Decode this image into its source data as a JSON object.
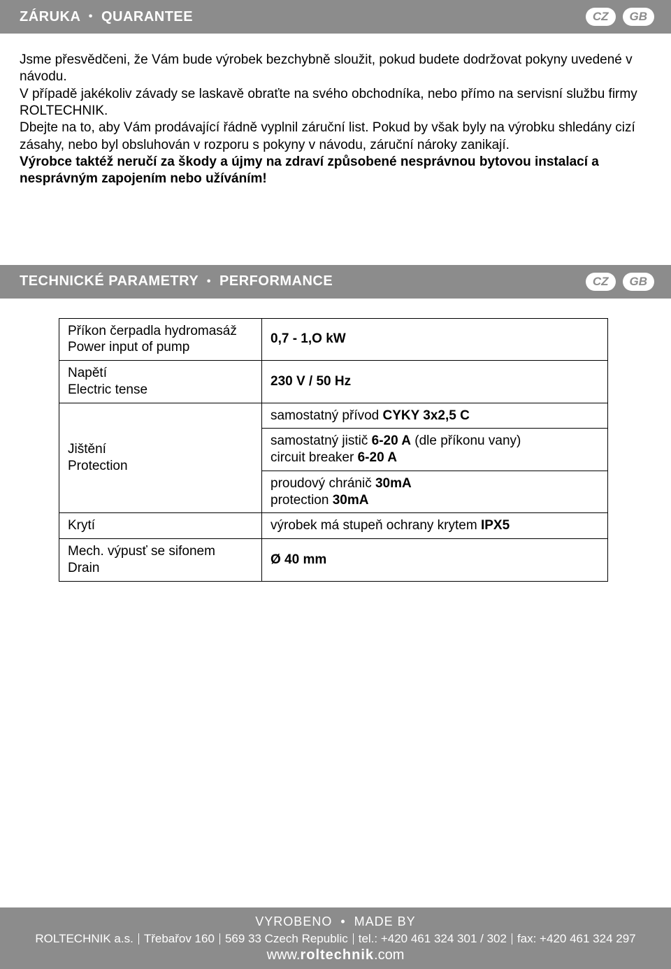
{
  "section1": {
    "title_cz": "ZÁRUKA",
    "title_en": "QUARANTEE",
    "langs": [
      "CZ",
      "GB"
    ],
    "paragraph": "Jsme přesvědčeni, že Vám bude výrobek bezchybně sloužit, pokud budete dodržovat pokyny uvedené v návodu.\nV případě jakékoliv závady se laskavě obraťte na svého obchodníka, nebo přímo na servisní službu firmy ROLTECHNIK.\nDbejte na to, aby Vám prodávající řádně vyplnil záruční list. Pokud by však byly na výrobku shledány cizí zásahy, nebo byl obsluhován v rozporu s pokyny v návodu, záruční nároky zanikají.",
    "paragraph_bold": "Výrobce taktéž neručí za škody a újmy na zdraví způsobené nesprávnou bytovou instalací a nesprávným zapojením nebo užíváním!"
  },
  "section2": {
    "title_cz": "TECHNICKÉ PARAMETRY",
    "title_en": "PERFORMANCE",
    "langs": [
      "CZ",
      "GB"
    ]
  },
  "table": {
    "r1c1a": "Příkon čerpadla hydromasáž",
    "r1c1b": "Power input of pump",
    "r1c2": "0,7 - 1,O kW",
    "r2c1a": "Napětí",
    "r2c1b": "Electric tense",
    "r2c2": "230 V / 50 Hz",
    "r3c1": "Jištění\nProtection",
    "r3c2a_pre": "samostatný přívod ",
    "r3c2a_b": "CYKY 3x2,5 C",
    "r3c2b_pre": "samostatný jistič ",
    "r3c2b_b": "6-20 A",
    "r3c2b_post": " (dle příkonu vany)",
    "r3c2b_en_pre": "circuit breaker ",
    "r3c2b_en_b": "6-20 A",
    "r3c2c_pre": "proudový chránič ",
    "r3c2c_b": "30mA",
    "r3c2c_en_pre": "protection ",
    "r3c2c_en_b": "30mA",
    "r4c1": "Krytí",
    "r4c2_pre": "výrobek má stupeň ochrany krytem ",
    "r4c2_b": "IPX5",
    "r5c1a": "Mech. výpusť se sifonem",
    "r5c1b": "Drain",
    "r5c2": "Ø 40 mm"
  },
  "footer": {
    "made_cz": "VYROBENO",
    "made_en": "MADE BY",
    "company": "ROLTECHNIK a.s.",
    "addr1": "Třebařov 160",
    "addr2": "569 33 Czech Republic",
    "tel": "tel.: +420 461 324 301 / 302",
    "fax": "fax: +420 461 324 297",
    "url_pre": "www.",
    "url_b": "roltechnik",
    "url_post": ".com"
  }
}
